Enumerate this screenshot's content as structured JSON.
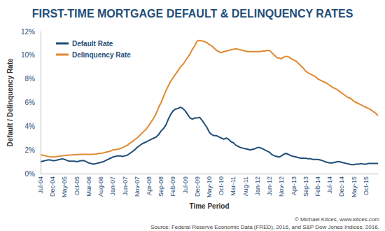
{
  "chart_data": {
    "type": "line",
    "title": "FIRST-TIME MORTGAGE DEFAULT & DELINQUENCY RATES",
    "x_label": "Time Period",
    "y_label": "Default / Delinquency Rate",
    "annotations": [
      "© Michael Kitces, www.kitces.com",
      "Source: Federal Reserve Economic Data (FRED), 2016, and S&P Dow Jones Indices, 2016."
    ],
    "categories": [
      "Jul-04",
      null,
      null,
      null,
      null,
      "Dec-04",
      null,
      null,
      null,
      null,
      "May-05",
      null,
      null,
      null,
      null,
      "Oct-05",
      null,
      null,
      null,
      null,
      "Mar-06",
      null,
      null,
      null,
      null,
      "Aug-06",
      null,
      null,
      null,
      null,
      "Jan-07",
      null,
      null,
      null,
      null,
      "Jun-07",
      null,
      null,
      null,
      null,
      "Nov-07",
      null,
      null,
      null,
      null,
      "Apr-08",
      null,
      null,
      null,
      null,
      "Sep-08",
      null,
      null,
      null,
      null,
      "Feb-09",
      null,
      null,
      null,
      null,
      "Jul-09",
      null,
      null,
      null,
      null,
      "Dec-09",
      null,
      null,
      null,
      null,
      "May-10",
      null,
      null,
      null,
      null,
      "Oct-10",
      null,
      null,
      null,
      null,
      "Mar-11",
      null,
      null,
      null,
      null,
      "Aug-11",
      null,
      null,
      null,
      null,
      "Jan-12",
      null,
      null,
      null,
      null,
      "Jun-12",
      null,
      null,
      null,
      null,
      "Nov-12",
      null,
      null,
      null,
      null,
      "Apr-13",
      null,
      null,
      null,
      null,
      "Sep-13",
      null,
      null,
      null,
      null,
      "Feb-14",
      null,
      null,
      null,
      null,
      "Jul-14",
      null,
      null,
      null,
      null,
      "Dec-14",
      null,
      null,
      null,
      null,
      "May-15",
      null,
      null,
      null,
      null,
      "Oct-15",
      null,
      null,
      null,
      null,
      null
    ],
    "series": [
      {
        "name": "Default Rate",
        "color": "#1f4e79",
        "values": [
          1.0,
          1.05,
          1.1,
          1.15,
          1.15,
          1.1,
          1.1,
          1.15,
          1.2,
          1.25,
          1.2,
          1.1,
          1.05,
          1.05,
          1.05,
          1.0,
          1.05,
          1.1,
          1.1,
          1.0,
          0.9,
          0.85,
          0.8,
          0.85,
          0.9,
          0.95,
          1.0,
          1.1,
          1.2,
          1.3,
          1.4,
          1.45,
          1.5,
          1.5,
          1.45,
          1.5,
          1.55,
          1.7,
          1.85,
          2.0,
          2.2,
          2.35,
          2.5,
          2.6,
          2.7,
          2.8,
          2.9,
          3.0,
          3.1,
          3.3,
          3.6,
          3.8,
          4.1,
          4.6,
          5.0,
          5.3,
          5.45,
          5.5,
          5.6,
          5.5,
          5.3,
          5.0,
          4.7,
          4.6,
          4.7,
          4.7,
          4.75,
          4.5,
          4.2,
          3.9,
          3.5,
          3.3,
          3.2,
          3.2,
          3.1,
          3.0,
          2.9,
          3.0,
          2.9,
          2.7,
          2.6,
          2.4,
          2.3,
          2.2,
          2.15,
          2.1,
          2.05,
          2.0,
          2.05,
          2.1,
          2.2,
          2.2,
          2.1,
          2.0,
          1.9,
          1.8,
          1.6,
          1.5,
          1.45,
          1.4,
          1.5,
          1.65,
          1.7,
          1.6,
          1.5,
          1.45,
          1.4,
          1.35,
          1.3,
          1.3,
          1.3,
          1.25,
          1.25,
          1.2,
          1.2,
          1.2,
          1.15,
          1.1,
          1.0,
          0.95,
          0.9,
          0.9,
          0.95,
          1.0,
          1.0,
          0.95,
          0.9,
          0.85,
          0.8,
          0.75,
          0.75,
          0.8,
          0.8,
          0.85,
          0.8,
          0.8,
          0.85,
          0.85,
          0.85,
          0.85,
          0.85
        ]
      },
      {
        "name": "Delinquency Rate",
        "color": "#e08a30",
        "values": [
          1.6,
          1.55,
          1.5,
          1.45,
          1.42,
          1.4,
          1.42,
          1.45,
          1.48,
          1.5,
          1.52,
          1.55,
          1.57,
          1.58,
          1.6,
          1.6,
          1.62,
          1.62,
          1.63,
          1.62,
          1.62,
          1.63,
          1.64,
          1.66,
          1.7,
          1.72,
          1.75,
          1.8,
          1.85,
          1.9,
          2.0,
          2.02,
          2.05,
          2.1,
          2.2,
          2.3,
          2.4,
          2.55,
          2.7,
          2.85,
          3.0,
          3.2,
          3.4,
          3.6,
          3.8,
          4.1,
          4.4,
          4.7,
          5.1,
          5.6,
          6.0,
          6.5,
          7.0,
          7.4,
          7.8,
          8.1,
          8.4,
          8.7,
          9.0,
          9.2,
          9.5,
          9.8,
          10.1,
          10.5,
          10.8,
          11.2,
          11.25,
          11.2,
          11.15,
          11.05,
          10.9,
          10.8,
          10.6,
          10.4,
          10.3,
          10.2,
          10.3,
          10.35,
          10.4,
          10.45,
          10.5,
          10.55,
          10.5,
          10.45,
          10.4,
          10.35,
          10.3,
          10.3,
          10.3,
          10.3,
          10.3,
          10.3,
          10.35,
          10.35,
          10.4,
          10.4,
          10.2,
          10.0,
          9.8,
          9.75,
          9.7,
          9.85,
          9.9,
          9.85,
          9.7,
          9.6,
          9.5,
          9.3,
          9.1,
          8.9,
          8.65,
          8.5,
          8.4,
          8.3,
          8.2,
          8.0,
          7.9,
          7.8,
          7.7,
          7.6,
          7.45,
          7.3,
          7.2,
          7.1,
          6.95,
          6.8,
          6.65,
          6.5,
          6.4,
          6.3,
          6.1,
          6.0,
          5.9,
          5.8,
          5.7,
          5.6,
          5.5,
          5.4,
          5.25,
          5.1,
          4.9
        ]
      }
    ],
    "ylim": [
      0,
      12
    ],
    "yticks": [
      {
        "value": 0,
        "label": "0%"
      },
      {
        "value": 2,
        "label": "2%"
      },
      {
        "value": 4,
        "label": "4%"
      },
      {
        "value": 6,
        "label": "6%"
      },
      {
        "value": 8,
        "label": "8%"
      },
      {
        "value": 10,
        "label": "10%"
      },
      {
        "value": 12,
        "label": "12%"
      }
    ],
    "grid": false,
    "legend": "upper left"
  }
}
